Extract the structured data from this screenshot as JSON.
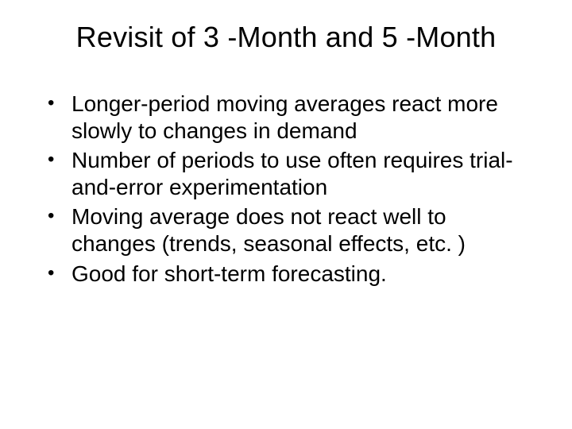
{
  "slide": {
    "title": "Revisit of 3 -Month and 5 -Month",
    "bullets": [
      "Longer-period moving averages react more slowly to changes in demand",
      "Number of periods to use often requires trial-and-error experimentation",
      "Moving average does not react well to changes (trends, seasonal effects, etc. )",
      "Good for short-term forecasting."
    ],
    "colors": {
      "background": "#ffffff",
      "text": "#000000"
    },
    "typography": {
      "title_fontsize_pt": 36,
      "body_fontsize_pt": 28,
      "font_family": "Arial"
    }
  }
}
